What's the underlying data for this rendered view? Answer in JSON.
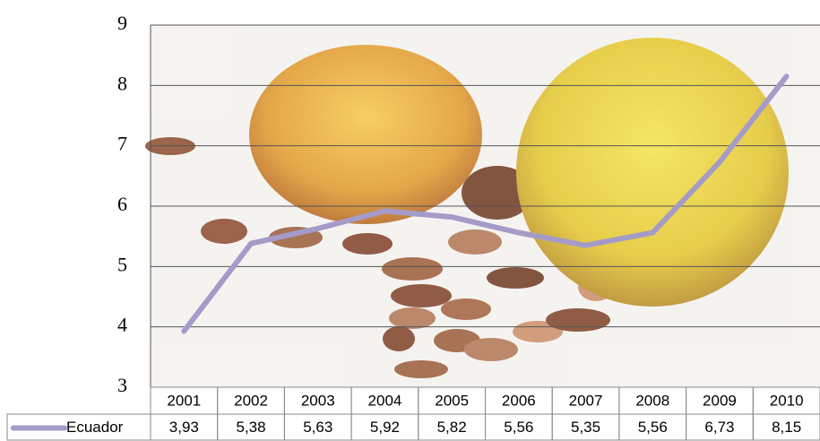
{
  "chart_data": {
    "type": "line",
    "categories": [
      "2001",
      "2002",
      "2003",
      "2004",
      "2005",
      "2006",
      "2007",
      "2008",
      "2009",
      "2010"
    ],
    "series": [
      {
        "name": "Ecuador",
        "color": "#a59bc9",
        "values": [
          3.93,
          5.38,
          5.63,
          5.92,
          5.82,
          5.56,
          5.35,
          5.56,
          6.73,
          8.15
        ],
        "value_labels": [
          "3,93",
          "5,38",
          "5,63",
          "5,92",
          "5,82",
          "5,56",
          "5,35",
          "5,56",
          "6,73",
          "8,15"
        ]
      }
    ],
    "ylim": [
      3,
      9
    ],
    "yticks": [
      3,
      4,
      5,
      6,
      7,
      8,
      9
    ],
    "grid": true
  }
}
